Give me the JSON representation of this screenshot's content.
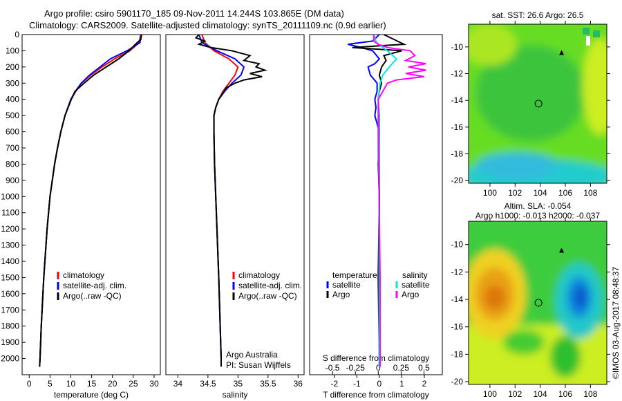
{
  "title_line1": "Argo profile: csiro 5901170_185 09-Nov-2011 14.244S 103.865E (DM data)",
  "title_line2": "Climatology: CARS2009. Satellite-adjusted climatology: synTS_20111109.nc (0.9d earlier)",
  "colors": {
    "climatology": "#ff0000",
    "satellite": "#0000ff",
    "argo": "#000000",
    "sal_satellite": "#00e5e5",
    "sal_argo": "#ff00ff"
  },
  "chart_data": [
    {
      "type": "line",
      "name": "temperature",
      "xlabel": "temperature (deg C)",
      "xlim": [
        -1.7,
        31.5
      ],
      "ylim": [
        2100,
        0
      ],
      "xticks": [
        0,
        5,
        10,
        15,
        20,
        25,
        30
      ],
      "yticks": [
        0,
        100,
        200,
        300,
        400,
        500,
        600,
        700,
        800,
        900,
        1000,
        1100,
        1200,
        1300,
        1400,
        1500,
        1600,
        1700,
        1800,
        1900,
        2000
      ],
      "legend": [
        "climatology",
        "satellite-adj. clim.",
        "Argo(..raw -QC)"
      ],
      "series": [
        {
          "name": "climatology",
          "color": "#ff0000",
          "depth": [
            0,
            50,
            100,
            150,
            200,
            250,
            300,
            350,
            400,
            500,
            600,
            700,
            800,
            1000,
            1200,
            1500,
            1800,
            2000,
            2050
          ],
          "values": [
            26.8,
            26.4,
            24.2,
            20.5,
            17.5,
            14.8,
            12.6,
            11.2,
            10.1,
            8.6,
            7.6,
            6.8,
            6.1,
            5.0,
            4.3,
            3.5,
            2.9,
            2.6,
            2.5
          ]
        },
        {
          "name": "satellite-adj. clim.",
          "color": "#0000ff",
          "depth": [
            0,
            50,
            100,
            150,
            200,
            250,
            300,
            350,
            400,
            500,
            600,
            700,
            800,
            1000,
            1200,
            1500,
            1800,
            2000,
            2050
          ],
          "values": [
            26.9,
            26.6,
            23.5,
            19.5,
            17.0,
            14.5,
            12.5,
            11.1,
            10.0,
            8.6,
            7.6,
            6.8,
            6.1,
            5.0,
            4.3,
            3.5,
            2.9,
            2.6,
            2.5
          ]
        },
        {
          "name": "Argo(..raw -QC)",
          "color": "#000000",
          "depth": [
            0,
            30,
            60,
            100,
            150,
            200,
            250,
            300,
            350,
            400,
            500,
            600,
            700,
            800,
            1000,
            1200,
            1500,
            1800,
            2000,
            2050
          ],
          "values": [
            27.0,
            26.8,
            25.5,
            24.0,
            21.5,
            18.5,
            15.5,
            13.2,
            11.0,
            10.1,
            8.6,
            7.6,
            6.8,
            6.1,
            5.0,
            4.3,
            3.5,
            2.9,
            2.6,
            2.5
          ]
        }
      ]
    },
    {
      "type": "line",
      "name": "salinity",
      "xlabel": "salinity",
      "xlim": [
        33.8,
        36.1
      ],
      "ylim": [
        2100,
        0
      ],
      "xticks": [
        34,
        34.5,
        35,
        35.5,
        36
      ],
      "legend": [
        "climatology",
        "satellite-adj. clim.",
        "Argo(..raw -QC)"
      ],
      "annotation": [
        "Argo Australia",
        "PI: Susan Wijffels"
      ],
      "series": [
        {
          "name": "climatology",
          "color": "#ff0000",
          "depth": [
            0,
            50,
            100,
            150,
            200,
            250,
            300,
            350,
            400,
            450,
            500,
            600,
            800,
            1000,
            1500,
            2000,
            2050
          ],
          "values": [
            34.4,
            34.45,
            34.6,
            34.85,
            35.0,
            34.95,
            34.85,
            34.75,
            34.68,
            34.63,
            34.6,
            34.6,
            34.61,
            34.63,
            34.68,
            34.72,
            34.72
          ]
        },
        {
          "name": "satellite-adj. clim.",
          "color": "#0000ff",
          "depth": [
            0,
            50,
            100,
            150,
            200,
            250,
            300,
            350,
            400,
            450,
            500,
            600,
            800,
            1000,
            1500,
            2000,
            2050
          ],
          "values": [
            34.35,
            34.4,
            34.65,
            34.95,
            35.1,
            35.05,
            34.9,
            34.78,
            34.68,
            34.63,
            34.6,
            34.6,
            34.61,
            34.63,
            34.68,
            34.72,
            34.72
          ]
        },
        {
          "name": "Argo(..raw -QC)",
          "color": "#000000",
          "depth": [
            0,
            20,
            40,
            60,
            80,
            100,
            130,
            160,
            180,
            200,
            220,
            240,
            260,
            280,
            300,
            330,
            360,
            400,
            450,
            500,
            600,
            800,
            1000,
            1500,
            2000,
            2050
          ],
          "values": [
            34.35,
            34.3,
            34.45,
            34.35,
            34.55,
            34.9,
            35.2,
            35.1,
            35.35,
            35.3,
            35.45,
            35.2,
            35.4,
            35.1,
            34.95,
            34.8,
            34.75,
            34.68,
            34.63,
            34.6,
            34.6,
            34.61,
            34.63,
            34.68,
            34.72,
            34.72
          ]
        }
      ]
    },
    {
      "type": "line",
      "name": "difference",
      "xlabel": "T difference from climatology",
      "x2label": "S difference from climatology",
      "xlim": [
        -3.1,
        2.8
      ],
      "x2lim": [
        -0.75,
        0.7
      ],
      "xticks": [
        -2,
        -1,
        0,
        1,
        2
      ],
      "x2ticks": [
        -0.5,
        -0.25,
        0,
        0.25,
        0.5
      ],
      "x2ticklabels": [
        "-0.5",
        "-0.25",
        "0",
        "0.25",
        "0.5"
      ],
      "legend_temperature": {
        "title": "temperature",
        "items": [
          "satellite",
          "Argo"
        ]
      },
      "legend_salinity": {
        "title": "salinity",
        "items": [
          "satellite",
          "Argo"
        ]
      },
      "series": [
        {
          "name": "T satellite",
          "axis": "T",
          "color": "#0000ff",
          "depth": [
            0,
            40,
            60,
            80,
            100,
            150,
            180,
            200,
            250,
            300,
            350,
            400,
            450,
            500,
            550,
            600,
            700,
            1000,
            1500,
            2000,
            2050
          ],
          "values": [
            0,
            -0.3,
            -1.4,
            -0.8,
            -0.3,
            0.0,
            -0.2,
            -0.5,
            -0.4,
            -0.1,
            -0.1,
            -0.2,
            -0.15,
            -0.2,
            -0.1,
            0.0,
            0,
            0,
            0,
            0,
            0
          ]
        },
        {
          "name": "T Argo",
          "axis": "T",
          "color": "#000000",
          "depth": [
            0,
            40,
            60,
            80,
            100,
            130,
            160,
            200,
            250,
            300,
            350,
            400,
            500,
            600,
            800,
            1000,
            1500,
            2000,
            2050
          ],
          "values": [
            0.2,
            0.8,
            1.1,
            -1.2,
            1.0,
            0.2,
            0.3,
            0.1,
            0.0,
            0.1,
            0.0,
            -0.05,
            0,
            0,
            -0.05,
            0,
            -0.05,
            0,
            0
          ]
        },
        {
          "name": "S satellite",
          "axis": "S",
          "color": "#00e5e5",
          "depth": [
            0,
            50,
            100,
            150,
            200,
            250,
            300,
            400,
            500,
            700,
            1000,
            1500,
            2000,
            2050
          ],
          "values": [
            -0.05,
            -0.02,
            0.1,
            0.2,
            0.12,
            0.05,
            0.02,
            0.0,
            0.01,
            0.01,
            0.01,
            0.01,
            0.01,
            0.01
          ]
        },
        {
          "name": "S Argo",
          "axis": "S",
          "color": "#ff00ff",
          "depth": [
            0,
            40,
            60,
            80,
            100,
            130,
            160,
            180,
            200,
            220,
            240,
            260,
            280,
            300,
            350,
            400,
            500,
            700,
            1000,
            1500,
            2000,
            2050
          ],
          "values": [
            -0.05,
            -0.05,
            0.0,
            0.1,
            0.35,
            0.4,
            0.3,
            0.52,
            0.33,
            0.52,
            0.3,
            0.5,
            0.2,
            0.1,
            0.05,
            0.0,
            0.0,
            0.0,
            0.01,
            0.02,
            0.02,
            0.02
          ]
        }
      ]
    },
    {
      "type": "heatmap",
      "name": "sst-map",
      "title": "sat. SST: 26.6  Argo: 26.5",
      "xticks": [
        100,
        102,
        104,
        106,
        108
      ],
      "yticks": [
        -10,
        -12,
        -14,
        -16,
        -18,
        -20
      ],
      "xlim": [
        98.3,
        109.3
      ],
      "ylim": [
        -20.2,
        -8.3
      ],
      "profile_position": [
        103.865,
        -14.244
      ]
    },
    {
      "type": "heatmap",
      "name": "sla-map",
      "title_line1": "Altim. SLA: -0.054",
      "title_line2": "Argo h1000: -0.013  h2000: -0.037",
      "xticks": [
        100,
        102,
        104,
        106,
        108
      ],
      "yticks": [
        -10,
        -12,
        -14,
        -16,
        -18,
        -20
      ],
      "xlim": [
        98.3,
        109.3
      ],
      "ylim": [
        -20.2,
        -8.3
      ],
      "profile_position": [
        103.865,
        -14.244
      ]
    }
  ],
  "copyright": "©IMOS 03-Aug-2017 08:48:37"
}
